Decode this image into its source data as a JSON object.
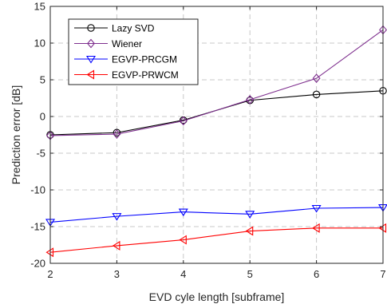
{
  "chart_data": {
    "type": "line",
    "title": "",
    "xlabel": "EVD cyle length [subframe]",
    "ylabel": "Prediction error [dB]",
    "x": [
      2,
      3,
      4,
      5,
      6,
      7
    ],
    "xlim": [
      2,
      7
    ],
    "ylim": [
      -20,
      15
    ],
    "xticks": [
      2,
      3,
      4,
      5,
      6,
      7
    ],
    "yticks": [
      -20,
      -15,
      -10,
      -5,
      0,
      5,
      10,
      15
    ],
    "grid": true,
    "legend_position": "top-left",
    "series": [
      {
        "name": "Lazy SVD",
        "color": "#000000",
        "marker": "circle",
        "values": [
          -2.5,
          -2.2,
          -0.5,
          2.2,
          3.0,
          3.5
        ]
      },
      {
        "name": "Wiener",
        "color": "#7e2f8e",
        "marker": "diamond",
        "values": [
          -2.6,
          -2.4,
          -0.6,
          2.3,
          5.2,
          11.8
        ]
      },
      {
        "name": "EGVP-PRCGM",
        "color": "#0000ff",
        "marker": "triangle-down",
        "values": [
          -14.4,
          -13.6,
          -13.0,
          -13.3,
          -12.5,
          -12.4
        ]
      },
      {
        "name": "EGVP-PRWCM",
        "color": "#ff0000",
        "marker": "triangle-left",
        "values": [
          -18.5,
          -17.6,
          -16.8,
          -15.6,
          -15.2,
          -15.2
        ]
      }
    ]
  }
}
